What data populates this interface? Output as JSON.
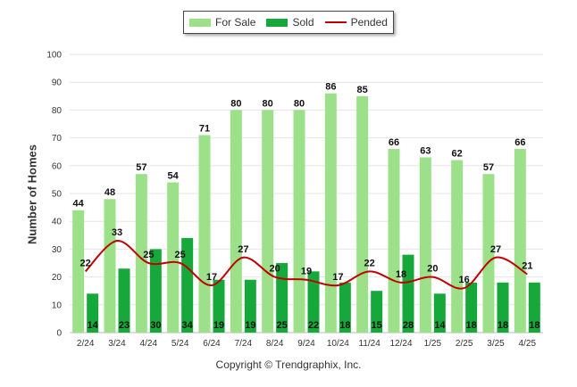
{
  "chart_data": {
    "type": "bar",
    "ylabel": "Number of Homes",
    "xlabel": "",
    "ylim": [
      0,
      100
    ],
    "yticks": [
      0,
      10,
      20,
      30,
      40,
      50,
      60,
      70,
      80,
      90,
      100
    ],
    "grid": true,
    "legend_position": "top-center",
    "categories": [
      "2/24",
      "3/24",
      "4/24",
      "5/24",
      "6/24",
      "7/24",
      "8/24",
      "9/24",
      "10/24",
      "11/24",
      "12/24",
      "1/25",
      "2/25",
      "3/25",
      "4/25"
    ],
    "series": [
      {
        "name": "For Sale",
        "type": "bar",
        "color": "#9de08a",
        "values": [
          44,
          48,
          57,
          54,
          71,
          80,
          80,
          80,
          86,
          85,
          66,
          63,
          62,
          57,
          66
        ]
      },
      {
        "name": "Sold",
        "type": "bar",
        "color": "#16a83a",
        "values": [
          14,
          23,
          30,
          34,
          19,
          19,
          25,
          22,
          18,
          15,
          28,
          14,
          18,
          18,
          18
        ]
      },
      {
        "name": "Pended",
        "type": "line",
        "color": "#c00000",
        "values": [
          22,
          33,
          25,
          25,
          17,
          27,
          20,
          19,
          17,
          22,
          18,
          20,
          16,
          27,
          21
        ]
      }
    ]
  },
  "legend": {
    "items": [
      {
        "label": "For Sale",
        "color": "#9de08a"
      },
      {
        "label": "Sold",
        "color": "#16a83a"
      },
      {
        "label": "Pended",
        "color": "#c00000"
      }
    ]
  },
  "footer": {
    "copyright": "Copyright © Trendgraphix, Inc."
  }
}
